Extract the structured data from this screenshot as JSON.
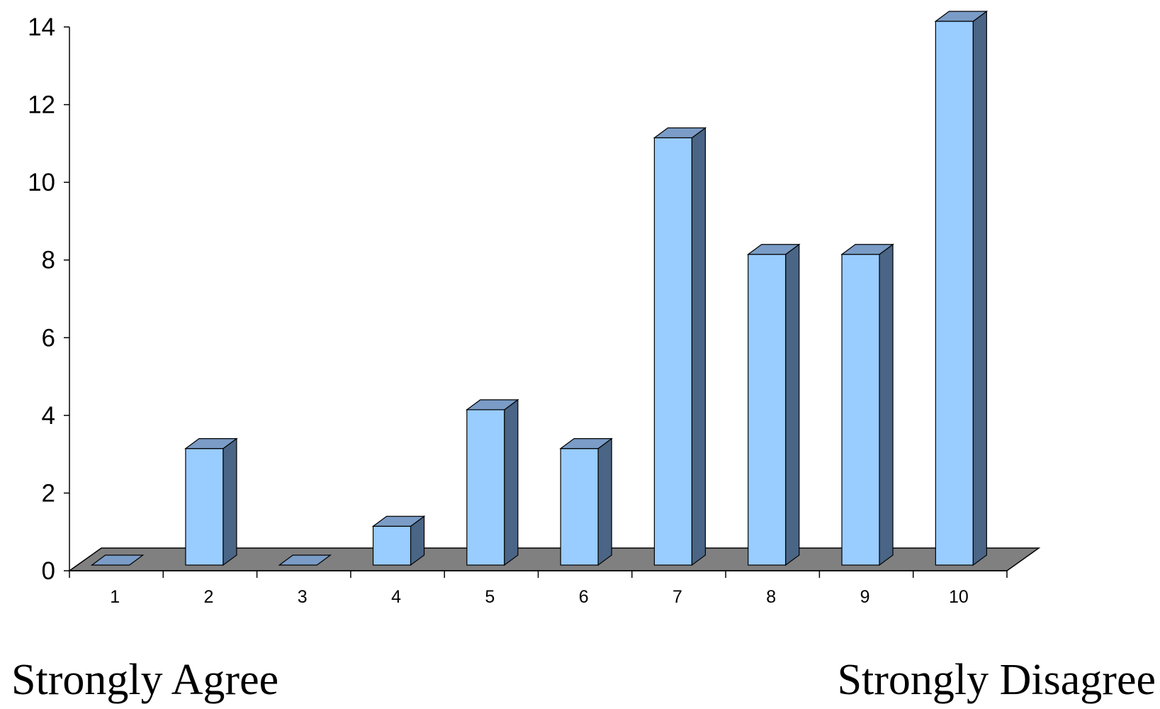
{
  "chart_data": {
    "type": "bar",
    "categories": [
      "1",
      "2",
      "3",
      "4",
      "5",
      "6",
      "7",
      "8",
      "9",
      "10"
    ],
    "values": [
      0,
      3,
      0,
      1,
      4,
      3,
      11,
      8,
      8,
      14
    ],
    "title": "",
    "xlabel": "",
    "ylabel": "",
    "ylim": [
      0,
      14
    ],
    "yticks": [
      "0",
      "2",
      "4",
      "6",
      "8",
      "10",
      "12",
      "14"
    ],
    "grid": false,
    "legend": "none",
    "style_3d": true,
    "scale_labels": {
      "left": "Strongly Agree",
      "right": "Strongly Disagree"
    },
    "colors": {
      "bar_front": "#99CCFF",
      "bar_side": "#4A6585",
      "bar_top": "#7A9CC6",
      "floor": "#808080",
      "axis": "#000000"
    }
  }
}
